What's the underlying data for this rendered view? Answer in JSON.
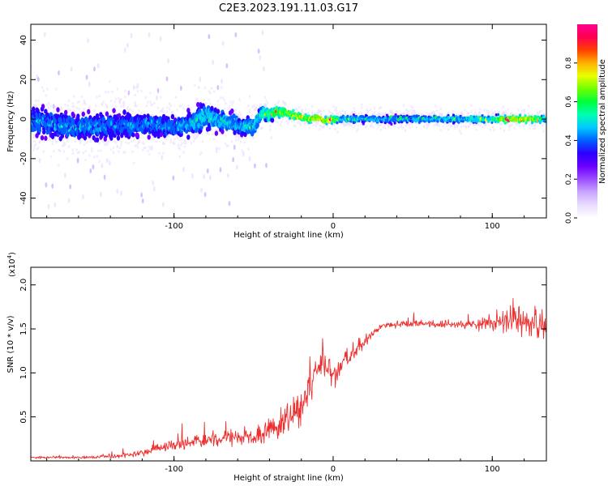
{
  "title": "C2E3.2023.191.11.03.G17",
  "colors": {
    "snr_line": "#ee2f2f",
    "axis": "#000000",
    "spectrogram_palette": [
      "#ffffff",
      "#e9dcff",
      "#c9a6ff",
      "#9b4dff",
      "#6a00ff",
      "#2a00ff",
      "#0060ff",
      "#00c8ff",
      "#00ffb0",
      "#00ff3c",
      "#70ff00",
      "#e8ff00",
      "#ffb000",
      "#ff4000",
      "#ff0050",
      "#ff0090"
    ]
  },
  "chart_data": [
    {
      "type": "heatmap",
      "name": "spectrogram",
      "xlabel": "Height of straight line (km)",
      "ylabel": "Frequency (Hz)",
      "xlim": [
        -190,
        134
      ],
      "ylim": [
        -50,
        48
      ],
      "x_ticks": [
        -100,
        0,
        100
      ],
      "x_tick_labels": [
        "-100",
        "0",
        "100"
      ],
      "y_ticks": [
        -40,
        -20,
        0,
        20,
        40
      ],
      "y_tick_labels": [
        "-40",
        "-20",
        "0",
        "20",
        "40"
      ],
      "ridge": {
        "x": [
          -190,
          -170,
          -150,
          -130,
          -110,
          -100,
          -90,
          -80,
          -70,
          -60,
          -50,
          -45,
          -40,
          -35,
          -30,
          -25,
          -20,
          -15,
          -10,
          -5,
          0,
          5,
          10,
          20,
          40,
          60,
          80,
          100,
          110,
          120,
          134
        ],
        "frequency": [
          -1,
          -3,
          -4,
          -3,
          -3,
          -4,
          -3,
          2,
          -1,
          -3,
          -4,
          3,
          2,
          4,
          3,
          2,
          1,
          0,
          1,
          -1,
          0,
          0,
          0,
          0,
          0,
          0,
          0,
          0,
          0,
          0,
          0
        ],
        "spread": [
          9,
          9,
          8,
          8,
          7,
          6,
          7,
          8,
          7,
          6,
          5,
          4,
          4,
          3,
          3,
          3,
          2.5,
          2.5,
          2.5,
          2.5,
          2.5,
          2.5,
          2.5,
          2.5,
          2.5,
          2.5,
          2.5,
          2.5,
          2.5,
          2.5,
          2.5
        ],
        "amplitude": [
          0.45,
          0.45,
          0.45,
          0.45,
          0.45,
          0.45,
          0.5,
          0.55,
          0.5,
          0.5,
          0.55,
          0.6,
          0.7,
          0.75,
          0.8,
          0.85,
          0.88,
          0.9,
          0.9,
          0.85,
          0.9,
          0.55,
          0.55,
          0.5,
          0.5,
          0.5,
          0.55,
          0.65,
          0.9,
          0.95,
          0.6
        ]
      },
      "colorbar": {
        "label": "Normalized spectral amplitude",
        "range": [
          0.0,
          1.0
        ],
        "ticks": [
          0.0,
          0.2,
          0.4,
          0.6,
          0.8
        ],
        "tick_labels": [
          "0.0",
          "0.2",
          "0.4",
          "0.6",
          "0.8"
        ]
      }
    },
    {
      "type": "line",
      "name": "snr",
      "xlabel": "Height of straight line (km)",
      "ylabel": "SNR (10 * v/v)",
      "y_multiplier_label": "(x10",
      "y_multiplier_exponent": "4",
      "y_multiplier_close": ")",
      "xlim": [
        -190,
        134
      ],
      "ylim": [
        0,
        22000
      ],
      "x_ticks": [
        -100,
        0,
        100
      ],
      "x_tick_labels": [
        "-100",
        "0",
        "100"
      ],
      "y_ticks": [
        5000,
        10000,
        15000,
        20000
      ],
      "y_tick_labels": [
        "0.5",
        "1.0",
        "1.5",
        "2.0"
      ],
      "trend": {
        "x": [
          -190,
          -160,
          -140,
          -120,
          -110,
          -100,
          -80,
          -60,
          -45,
          -40,
          -30,
          -20,
          -15,
          -10,
          -5,
          0,
          5,
          10,
          15,
          20,
          25,
          30,
          40,
          60,
          80,
          90,
          100,
          110,
          120,
          134
        ],
        "snr": [
          400,
          400,
          500,
          800,
          1500,
          1800,
          2400,
          2600,
          2800,
          3500,
          4500,
          6000,
          8000,
          10500,
          11000,
          10000,
          10500,
          11500,
          12500,
          13500,
          14500,
          15200,
          15500,
          15600,
          15400,
          15500,
          15700,
          15800,
          15600,
          15200
        ],
        "spread": [
          150,
          200,
          250,
          400,
          700,
          800,
          1000,
          1100,
          1300,
          1700,
          2300,
          2500,
          2500,
          2300,
          2000,
          1700,
          1400,
          1100,
          900,
          700,
          550,
          450,
          400,
          450,
          500,
          700,
          1000,
          1800,
          2500,
          3000
        ]
      }
    }
  ]
}
